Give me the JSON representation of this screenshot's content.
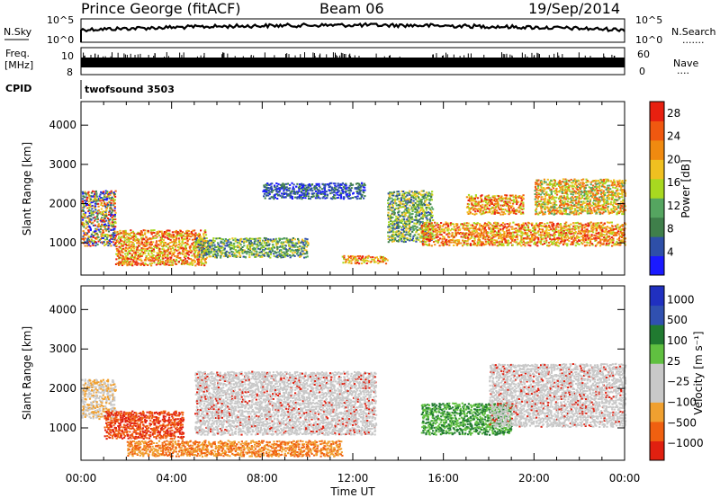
{
  "header": {
    "station": "Prince George (fitACF)",
    "beam": "Beam 06",
    "date": "19/Sep/2014"
  },
  "strip_labels": {
    "nsky": "N.Sky",
    "freq": "Freq.",
    "freq_unit": "[MHz]",
    "cpid": "CPID",
    "nsearch": "N.Search",
    "nsearch_dots": ".......",
    "nave": "Nave",
    "nave_dots": "....",
    "cpid_value": "twofsound 3503",
    "noise_top_tick": "10^5",
    "noise_bottom_tick": "10^0",
    "freq_ticks": [
      "10",
      "8"
    ],
    "nave_ticks": [
      "60",
      "0"
    ]
  },
  "colors": {
    "power": [
      "#1a1aff",
      "#2e4fa8",
      "#3f7f4a",
      "#55a560",
      "#a8d820",
      "#f0c020",
      "#f08a10",
      "#f05810",
      "#e82010"
    ],
    "velocity": [
      "#2030c0",
      "#3050b0",
      "#207a30",
      "#60c040",
      "#c8c8c8",
      "#c8c8c8",
      "#f0a030",
      "#f06010",
      "#e02010"
    ]
  },
  "chart_data": [
    {
      "type": "heatmap",
      "title": "",
      "xlabel": "Time UT",
      "ylabel": "Slant Range [km]",
      "xlim": [
        "00:00",
        "24:00"
      ],
      "ylim": [
        180,
        4600
      ],
      "x_tick_labels": [
        "00:00",
        "04:00",
        "08:00",
        "12:00",
        "16:00",
        "20:00",
        "00:00"
      ],
      "y_tick_labels": [
        "1000",
        "2000",
        "3000",
        "4000"
      ],
      "colorbar": {
        "label": "Power [dB]",
        "tick_labels": [
          "4",
          "8",
          "12",
          "16",
          "20",
          "24",
          "28"
        ],
        "range": [
          0,
          30
        ]
      },
      "regions": [
        {
          "t0": 0.0,
          "t1": 1.5,
          "r0": 900,
          "r1": 2300,
          "level": "mixed high"
        },
        {
          "t0": 1.5,
          "t1": 5.5,
          "r0": 400,
          "r1": 1300,
          "level": "high"
        },
        {
          "t0": 5.0,
          "t1": 10.0,
          "r0": 600,
          "r1": 1100,
          "level": "medium"
        },
        {
          "t0": 8.0,
          "t1": 12.5,
          "r0": 2100,
          "r1": 2500,
          "level": "low"
        },
        {
          "t0": 11.5,
          "t1": 13.5,
          "r0": 450,
          "r1": 650,
          "level": "high"
        },
        {
          "t0": 13.5,
          "t1": 15.5,
          "r0": 1000,
          "r1": 2300,
          "level": "medium"
        },
        {
          "t0": 15.0,
          "t1": 24.0,
          "r0": 900,
          "r1": 1500,
          "level": "high"
        },
        {
          "t0": 17.0,
          "t1": 19.5,
          "r0": 1700,
          "r1": 2200,
          "level": "high"
        },
        {
          "t0": 20.0,
          "t1": 24.0,
          "r0": 1700,
          "r1": 2600,
          "level": "medium high"
        }
      ]
    },
    {
      "type": "heatmap",
      "title": "",
      "xlabel": "Time UT",
      "ylabel": "Slant Range [km]",
      "xlim": [
        "00:00",
        "24:00"
      ],
      "ylim": [
        180,
        4600
      ],
      "x_tick_labels": [
        "00:00",
        "04:00",
        "08:00",
        "12:00",
        "16:00",
        "20:00",
        "00:00"
      ],
      "y_tick_labels": [
        "1000",
        "2000",
        "3000",
        "4000"
      ],
      "colorbar": {
        "label": "Velocity [m s⁻¹]",
        "tick_labels": [
          "1000",
          "500",
          "100",
          "25",
          "−25",
          "−100",
          "−500",
          "−1000"
        ],
        "range": [
          -1250,
          1250
        ]
      },
      "regions": [
        {
          "t0": 0.0,
          "t1": 1.5,
          "r0": 1200,
          "r1": 2200,
          "level": "grey/orange"
        },
        {
          "t0": 1.0,
          "t1": 4.5,
          "r0": 700,
          "r1": 1400,
          "level": "red (-500 to -1000)"
        },
        {
          "t0": 2.0,
          "t1": 11.5,
          "r0": 250,
          "r1": 650,
          "level": "orange (-100)"
        },
        {
          "t0": 5.0,
          "t1": 13.0,
          "r0": 800,
          "r1": 2400,
          "level": "grey (±25)"
        },
        {
          "t0": 15.0,
          "t1": 19.0,
          "r0": 800,
          "r1": 1600,
          "level": "green (100)"
        },
        {
          "t0": 18.0,
          "t1": 24.0,
          "r0": 1000,
          "r1": 2600,
          "level": "grey (±25)"
        }
      ]
    }
  ]
}
